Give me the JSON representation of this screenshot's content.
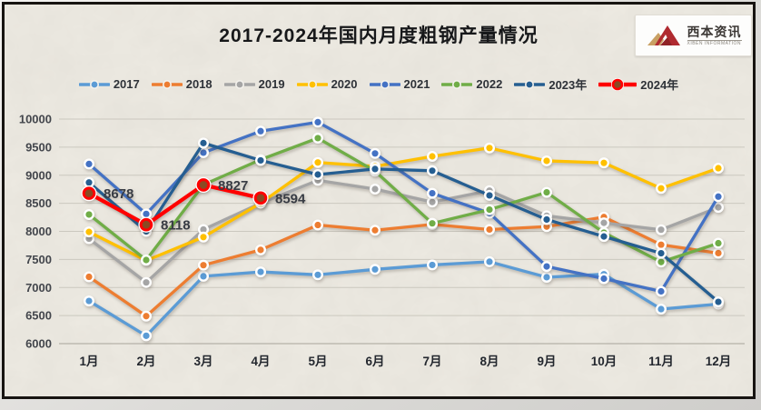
{
  "header": {
    "title": "2017-2024年国内月度粗钢产量情况",
    "logo": {
      "brand": "西本资讯",
      "brand_sub": "XIBEN INFORMATION"
    }
  },
  "chart_data": {
    "type": "line",
    "title": "2017-2024年国内月度粗钢产量情况",
    "categories": [
      "1月",
      "2月",
      "3月",
      "4月",
      "5月",
      "6月",
      "7月",
      "8月",
      "9月",
      "10月",
      "11月",
      "12月"
    ],
    "series": [
      {
        "name": "2017",
        "color": "#5B9BD5",
        "values": [
          6760,
          6140,
          7200,
          7278,
          7226,
          7323,
          7402,
          7459,
          7183,
          7236,
          6615,
          6705
        ]
      },
      {
        "name": "2018",
        "color": "#ED7D31",
        "values": [
          7190,
          6490,
          7398,
          7670,
          8113,
          8020,
          8124,
          8033,
          8085,
          8255,
          7762,
          7612
        ]
      },
      {
        "name": "2019",
        "color": "#A5A5A5",
        "values": [
          7870,
          7090,
          8033,
          8503,
          8909,
          8753,
          8522,
          8725,
          8277,
          8152,
          8029,
          8427
        ]
      },
      {
        "name": "2020",
        "color": "#FFC000",
        "values": [
          7990,
          7480,
          7898,
          8503,
          9227,
          9158,
          9336,
          9485,
          9256,
          9220,
          8766,
          9125
        ]
      },
      {
        "name": "2021",
        "color": "#4472C4",
        "values": [
          9200,
          8310,
          9402,
          9785,
          9945,
          9388,
          8679,
          8324,
          7375,
          7158,
          6931,
          8619
        ]
      },
      {
        "name": "2022",
        "color": "#70AD47",
        "values": [
          8300,
          7490,
          8830,
          9278,
          9661,
          9073,
          8143,
          8387,
          8695,
          7976,
          7454,
          7789
        ]
      },
      {
        "name": "2023年",
        "color": "#255E91",
        "values": [
          8870,
          8000,
          9573,
          9264,
          9012,
          9111,
          9080,
          8641,
          8211,
          7909,
          7610,
          6744
        ]
      },
      {
        "name": "2024年",
        "color": "#FF0000",
        "marker_fill": "#8A4A23",
        "emphasis": true,
        "values": [
          8678,
          8118,
          8827,
          8594,
          null,
          null,
          null,
          null,
          null,
          null,
          null,
          null
        ],
        "point_labels": [
          "8678",
          "8118",
          "8827",
          "8594"
        ]
      }
    ],
    "ylim": [
      6000,
      10000
    ],
    "ytick_step": 500,
    "yticks": [
      "10000",
      "9500",
      "9000",
      "8500",
      "8000",
      "7500",
      "7000",
      "6500",
      "6000"
    ],
    "grid": true,
    "legend_position": "top",
    "xlabel": "",
    "ylabel": ""
  }
}
